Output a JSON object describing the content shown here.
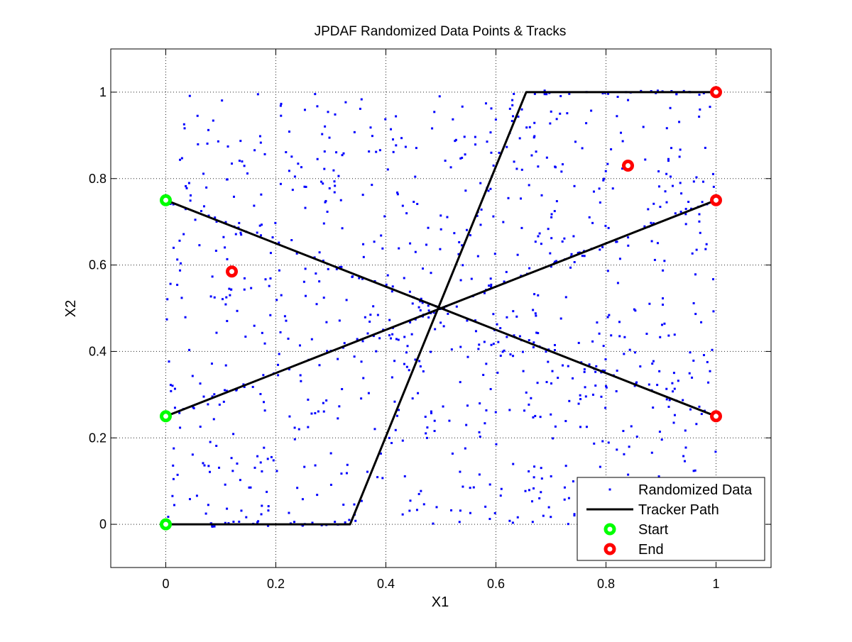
{
  "chart_data": {
    "type": "scatter",
    "title": "JPDAF Randomized Data Points & Tracks",
    "xlabel": "X1",
    "ylabel": "X2",
    "xlim": [
      -0.1,
      1.1
    ],
    "ylim": [
      -0.1,
      1.1
    ],
    "xticks": [
      0,
      0.2,
      0.4,
      0.6,
      0.8,
      1
    ],
    "yticks": [
      0,
      0.2,
      0.4,
      0.6,
      0.8,
      1
    ],
    "xtick_labels": [
      "0",
      "0.2",
      "0.4",
      "0.6",
      "0.8",
      "1"
    ],
    "ytick_labels": [
      "0",
      "0.2",
      "0.4",
      "0.6",
      "0.8",
      "1"
    ],
    "grid": true,
    "legend_position": "bottom-right",
    "legend": [
      {
        "label": "Randomized Data",
        "marker": "dot",
        "color": "#0000ff"
      },
      {
        "label": "Tracker Path",
        "marker": "line",
        "color": "#000000"
      },
      {
        "label": "Start",
        "marker": "circle",
        "color": "#00ff00"
      },
      {
        "label": "End",
        "marker": "circle",
        "color": "#ff0000"
      }
    ],
    "series": [
      {
        "name": "Randomized Data",
        "kind": "scatter",
        "color": "#0000ff",
        "count": 1000,
        "x_range": [
          0,
          1
        ],
        "y_range": [
          0,
          1
        ],
        "distribution": "uniform random with additional points scattered along tracker paths"
      },
      {
        "name": "Tracker Path",
        "kind": "line",
        "color": "#000000",
        "tracks": [
          {
            "x": [
              0,
              1
            ],
            "y": [
              0.75,
              0.25
            ]
          },
          {
            "x": [
              0,
              1
            ],
            "y": [
              0.25,
              0.75
            ]
          },
          {
            "x": [
              0,
              0.335,
              0.655,
              1
            ],
            "y": [
              0,
              0,
              1,
              1
            ]
          }
        ]
      },
      {
        "name": "Start",
        "kind": "scatter",
        "color": "#00ff00",
        "x": [
          0,
          0,
          0
        ],
        "y": [
          0.75,
          0.25,
          0
        ]
      },
      {
        "name": "End",
        "kind": "scatter",
        "color": "#ff0000",
        "x": [
          1,
          1,
          1,
          0.84,
          0.12
        ],
        "y": [
          1,
          0.75,
          0.25,
          0.83,
          0.585
        ]
      }
    ]
  }
}
